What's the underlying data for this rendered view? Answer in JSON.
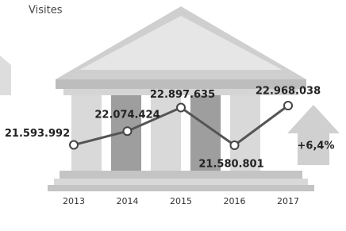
{
  "chart_data": {
    "type": "line",
    "title": "Visites",
    "categories": [
      "2013",
      "2014",
      "2015",
      "2016",
      "2017"
    ],
    "series": [
      {
        "name": "Visites",
        "color": "#555555",
        "values": [
          21593992,
          22074424,
          22897635,
          21580801,
          22968038
        ],
        "value_labels": [
          "21.593.992",
          "22.074.424",
          "22.897.635",
          "21.580.801",
          "22.968.038"
        ]
      }
    ],
    "annotation": "+6,4%"
  }
}
